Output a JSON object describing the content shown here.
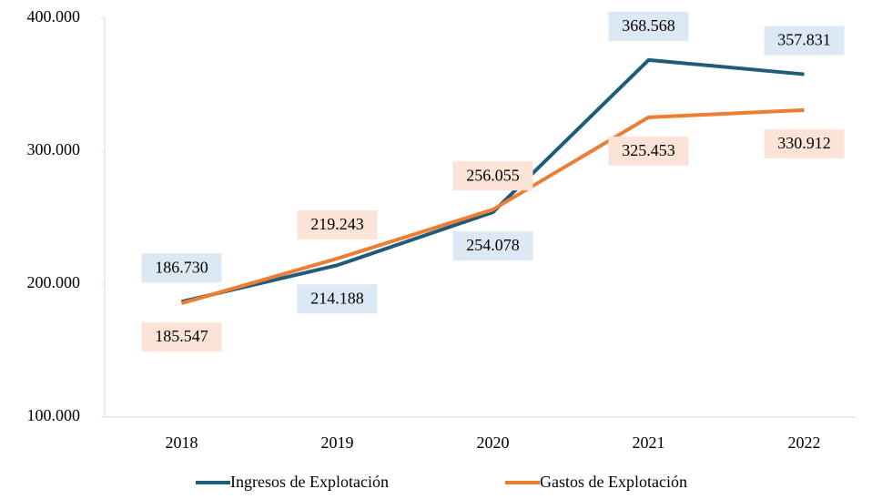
{
  "chart_data": {
    "type": "line",
    "categories": [
      "2018",
      "2019",
      "2020",
      "2021",
      "2022"
    ],
    "series": [
      {
        "name": "Ingresos de Explotación",
        "color": "#1f5c7a",
        "label_bg": "#dce9f5",
        "values": [
          186730,
          214188,
          254078,
          368568,
          357831
        ],
        "value_labels": [
          "186.730",
          "214.188",
          "254.078",
          "368.568",
          "357.831"
        ]
      },
      {
        "name": "Gastos de Explotación",
        "color": "#ed7d31",
        "label_bg": "#fbe4d7",
        "values": [
          185547,
          219243,
          256055,
          325453,
          330912
        ],
        "value_labels": [
          "185.547",
          "219.243",
          "256.055",
          "325.453",
          "330.912"
        ]
      }
    ],
    "ylim": [
      100000,
      400000
    ],
    "yticks": [
      {
        "value": 100000,
        "label": "100.000"
      },
      {
        "value": 200000,
        "label": "200.000"
      },
      {
        "value": 300000,
        "label": "300.000"
      },
      {
        "value": 400000,
        "label": "400.000"
      }
    ],
    "grid": false,
    "legend": "bottom"
  }
}
